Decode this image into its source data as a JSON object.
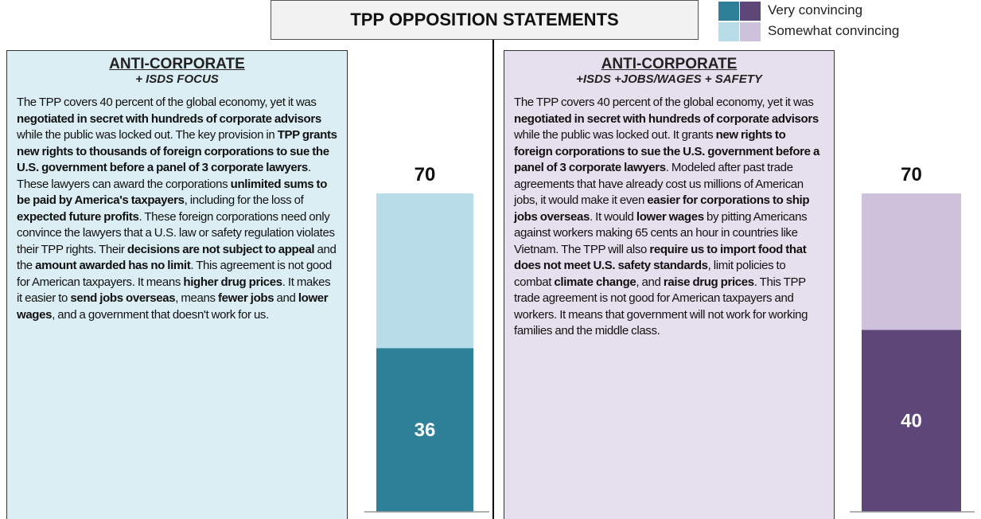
{
  "title": "TPP OPPOSITION STATEMENTS",
  "chart_data": [
    {
      "type": "bar",
      "title": "ANTI-CORPORATE",
      "subtitle": "+ ISDS FOCUS",
      "text": [
        {
          "text": "The TPP covers 40 percent of the global economy, yet it was ",
          "bold": false
        },
        {
          "text": "negotiated in secret with hundreds of corporate advisors",
          "bold": true
        },
        {
          "text": " while the public was locked out. The key provision in ",
          "bold": false
        },
        {
          "text": "TPP grants new rights to thousands of foreign corporations to sue the U.S. government before a panel of 3 corporate lawyers",
          "bold": true
        },
        {
          "text": ". These lawyers can award the corporations ",
          "bold": false
        },
        {
          "text": "unlimited sums to be paid by America's taxpayers",
          "bold": true
        },
        {
          "text": ", including for the loss of ",
          "bold": false
        },
        {
          "text": "expected future profits",
          "bold": true
        },
        {
          "text": ". These foreign corporations need only convince the lawyers that a U.S. law or safety regulation violates their TPP rights. Their ",
          "bold": false
        },
        {
          "text": "decisions are not subject to appeal",
          "bold": true
        },
        {
          "text": " and the ",
          "bold": false
        },
        {
          "text": "amount awarded has no limit",
          "bold": true
        },
        {
          "text": ". This agreement is not good for American taxpayers. It means ",
          "bold": false
        },
        {
          "text": "higher drug prices",
          "bold": true
        },
        {
          "text": ". It makes it easier to ",
          "bold": false
        },
        {
          "text": "send jobs overseas",
          "bold": true
        },
        {
          "text": ", means ",
          "bold": false
        },
        {
          "text": "fewer jobs",
          "bold": true
        },
        {
          "text": " and ",
          "bold": false
        },
        {
          "text": "lower wages",
          "bold": true
        },
        {
          "text": ", and a government that doesn't work for us.",
          "bold": false
        }
      ],
      "panel_color": "#dbeef4",
      "ylim": [
        0,
        70
      ],
      "total": 70,
      "series": [
        {
          "name": "Very convincing",
          "color": "#2e8099",
          "values": [
            36
          ]
        },
        {
          "name": "Somewhat convincing",
          "color": "#b9dde8",
          "values": [
            34
          ]
        }
      ]
    },
    {
      "type": "bar",
      "title": "ANTI-CORPORATE",
      "subtitle": "+ISDS +JOBS/WAGES + SAFETY",
      "text": [
        {
          "text": "The TPP covers 40 percent of the global economy, yet it was ",
          "bold": false
        },
        {
          "text": "negotiated in secret with hundreds of corporate advisors",
          "bold": true
        },
        {
          "text": " while the public was locked out. It grants ",
          "bold": false
        },
        {
          "text": "new rights to foreign corporations to sue the U.S. government before a panel of 3 corporate lawyers",
          "bold": true
        },
        {
          "text": ". Modeled after past trade agreements that have already cost us millions of American jobs, it would make it even ",
          "bold": false
        },
        {
          "text": "easier for corporations to ship jobs overseas",
          "bold": true
        },
        {
          "text": ". It would ",
          "bold": false
        },
        {
          "text": "lower wages",
          "bold": true
        },
        {
          "text": " by pitting Americans against workers making 65 cents an hour in countries like Vietnam. The TPP will also ",
          "bold": false
        },
        {
          "text": "require us to import food that does not meet U.S. safety standards",
          "bold": true
        },
        {
          "text": ", limit policies to combat ",
          "bold": false
        },
        {
          "text": "climate change",
          "bold": true
        },
        {
          "text": ", and ",
          "bold": false
        },
        {
          "text": "raise drug prices",
          "bold": true
        },
        {
          "text": ". This TPP trade agreement is not good for American taxpayers and workers. It means that government will not work for working families and the middle class.",
          "bold": false
        }
      ],
      "panel_color": "#e6e0ee",
      "ylim": [
        0,
        70
      ],
      "total": 70,
      "series": [
        {
          "name": "Very convincing",
          "color": "#5e4778",
          "values": [
            40
          ]
        },
        {
          "name": "Somewhat convincing",
          "color": "#cdc1dc",
          "values": [
            30
          ]
        }
      ]
    }
  ]
}
